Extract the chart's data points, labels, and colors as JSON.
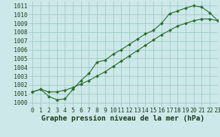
{
  "title": "Graphe pression niveau de la mer (hPa)",
  "bg_color": "#cce8e8",
  "line_color": "#2d6e2d",
  "marker_color": "#2d6e2d",
  "xlim": [
    -0.5,
    23
  ],
  "ylim": [
    999.5,
    1011.5
  ],
  "yticks": [
    1000,
    1001,
    1002,
    1003,
    1004,
    1005,
    1006,
    1007,
    1008,
    1009,
    1010,
    1011
  ],
  "xticks": [
    0,
    1,
    2,
    3,
    4,
    5,
    6,
    7,
    8,
    9,
    10,
    11,
    12,
    13,
    14,
    15,
    16,
    17,
    18,
    19,
    20,
    21,
    22,
    23
  ],
  "curve1_x": [
    0,
    1,
    2,
    3,
    4,
    5,
    6,
    7,
    8,
    9,
    10,
    11,
    12,
    13,
    14,
    15,
    16,
    17,
    18,
    19,
    20,
    21,
    22,
    23
  ],
  "curve1_y": [
    1001.2,
    1001.5,
    1000.7,
    1000.3,
    1000.4,
    1001.5,
    1002.5,
    1003.3,
    1004.6,
    1004.8,
    1005.5,
    1006.0,
    1006.6,
    1007.2,
    1007.8,
    1008.2,
    1009.0,
    1010.1,
    1010.4,
    1010.75,
    1011.0,
    1010.85,
    1010.2,
    1009.3
  ],
  "curve2_x": [
    0,
    1,
    2,
    3,
    4,
    5,
    6,
    7,
    8,
    9,
    10,
    11,
    12,
    13,
    14,
    15,
    16,
    17,
    18,
    19,
    20,
    21,
    22,
    23
  ],
  "curve2_y": [
    1001.2,
    1001.5,
    1001.2,
    1001.2,
    1001.4,
    1001.7,
    1002.1,
    1002.5,
    1003.0,
    1003.5,
    1004.1,
    1004.7,
    1005.3,
    1005.9,
    1006.5,
    1007.1,
    1007.7,
    1008.2,
    1008.7,
    1009.0,
    1009.3,
    1009.5,
    1009.5,
    1009.3
  ],
  "grid_color": "#9dc8c8",
  "xlabel_fontsize": 7.5,
  "tick_fontsize": 6.0
}
